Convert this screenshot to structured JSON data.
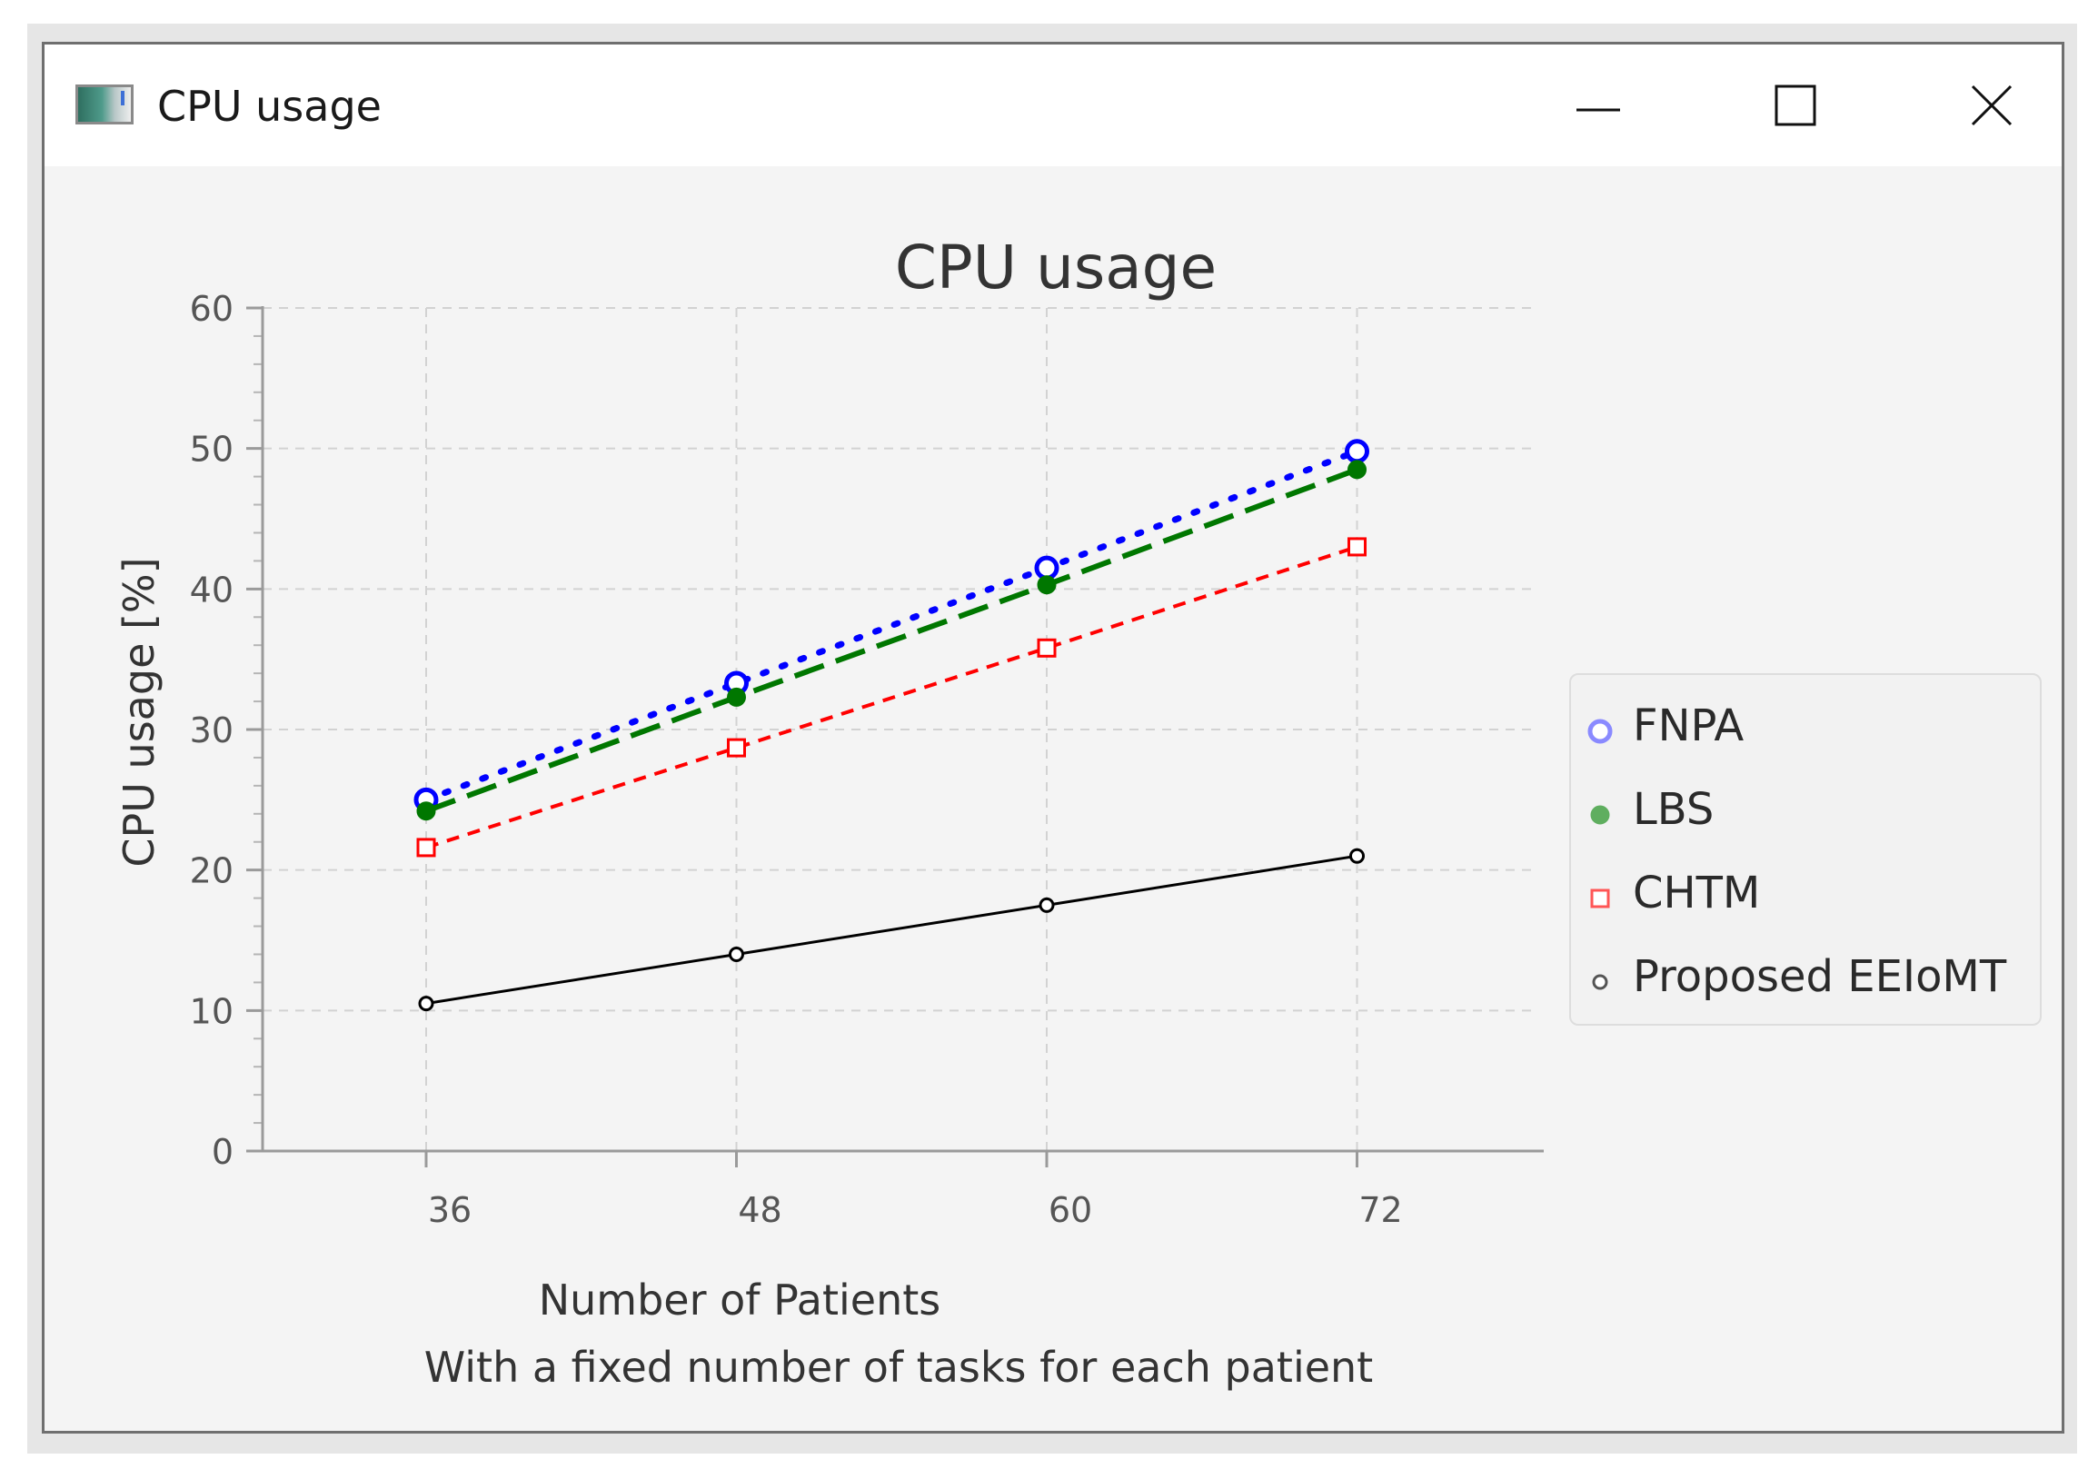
{
  "window": {
    "title": "CPU usage",
    "icons": {
      "app": "app-window-icon",
      "minimize": "minimize-icon",
      "maximize": "maximize-icon",
      "close": "close-icon"
    }
  },
  "chart_data": {
    "type": "line",
    "title": "CPU usage",
    "xlabel": "Number of Patients",
    "xlabel2": "With a fixed number of tasks for each patient",
    "ylabel": "CPU usage [%]",
    "categories": [
      "36",
      "48",
      "60",
      "72"
    ],
    "x": [
      36,
      48,
      60,
      72
    ],
    "ylim": [
      0,
      60
    ],
    "yticks": [
      "0",
      "10",
      "20",
      "30",
      "40",
      "50",
      "60"
    ],
    "grid": true,
    "legend_position": "right",
    "series": [
      {
        "name": "FNPA",
        "values": [
          25,
          33.3,
          41.5,
          49.8
        ],
        "color": "#0000ff",
        "marker": "open-circle",
        "line": "dotted"
      },
      {
        "name": "LBS",
        "values": [
          24.2,
          32.3,
          40.3,
          48.5
        ],
        "color": "#007700",
        "marker": "filled-circle",
        "line": "dashed"
      },
      {
        "name": "CHTM",
        "values": [
          21.6,
          28.7,
          35.8,
          43
        ],
        "color": "#ff0000",
        "marker": "open-square",
        "line": "short-dashed"
      },
      {
        "name": "Proposed EEIoMT",
        "values": [
          10.5,
          14,
          17.5,
          21
        ],
        "color": "#000000",
        "marker": "small-open-circle",
        "line": "solid"
      }
    ]
  }
}
